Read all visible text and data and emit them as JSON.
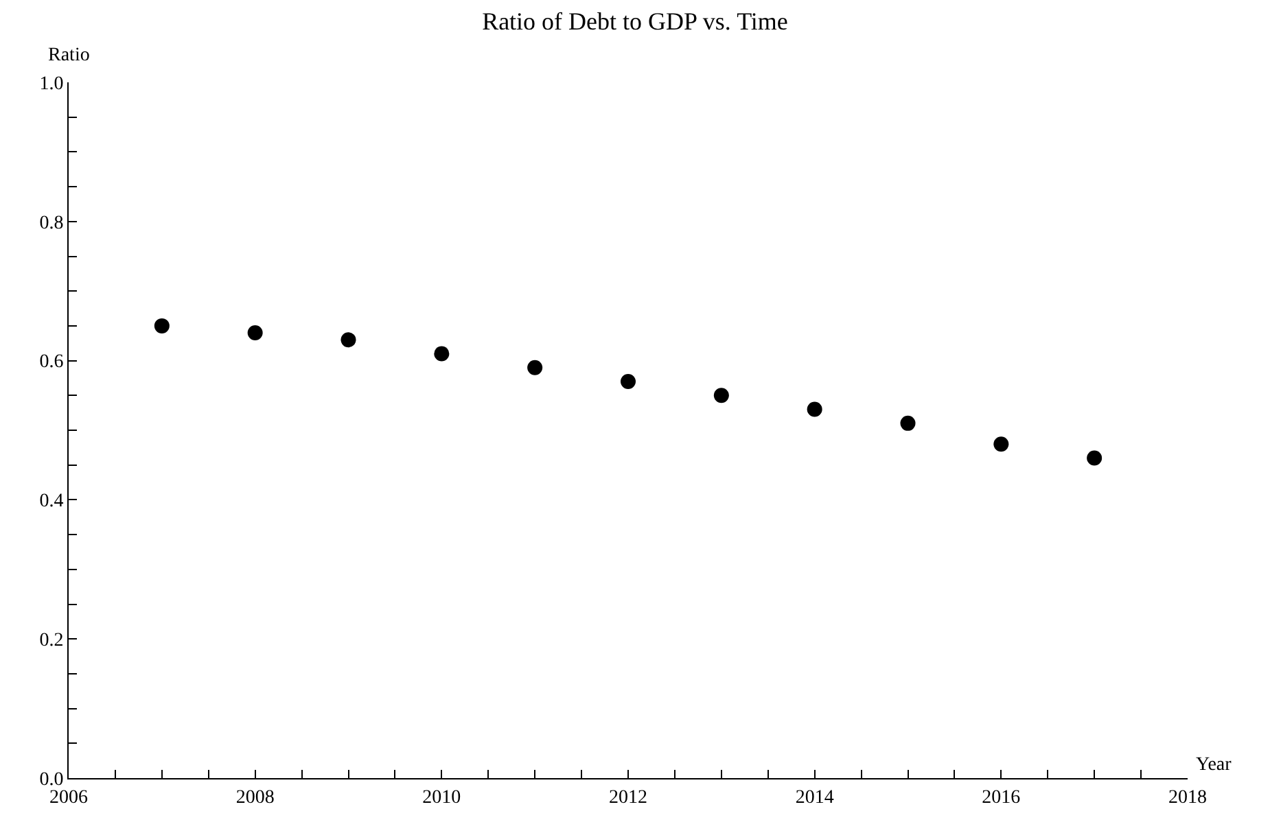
{
  "chart_data": {
    "type": "scatter",
    "title": "Ratio of Debt to GDP vs. Time",
    "xlabel": "Year",
    "ylabel": "Ratio",
    "x": [
      2007,
      2008,
      2009,
      2010,
      2011,
      2012,
      2013,
      2014,
      2015,
      2016,
      2017
    ],
    "series": [
      {
        "color": "#000000",
        "values": [
          0.65,
          0.64,
          0.63,
          0.61,
          0.59,
          0.57,
          0.55,
          0.53,
          0.51,
          0.48,
          0.46
        ]
      }
    ],
    "xlim": [
      2006,
      2018
    ],
    "xticks": [
      2006,
      {
        "value": 2006.5,
        "label": null
      },
      {
        "value": 2007,
        "label": null
      },
      {
        "value": 2007.5,
        "label": null
      },
      2008,
      {
        "value": 2008.5,
        "label": null
      },
      {
        "value": 2009,
        "label": null
      },
      {
        "value": 2009.5,
        "label": null
      },
      2010,
      {
        "value": 2010.5,
        "label": null
      },
      {
        "value": 2011,
        "label": null
      },
      {
        "value": 2011.5,
        "label": null
      },
      2012,
      {
        "value": 2012.5,
        "label": null
      },
      {
        "value": 2013,
        "label": null
      },
      {
        "value": 2013.5,
        "label": null
      },
      2014,
      {
        "value": 2014.5,
        "label": null
      },
      {
        "value": 2015,
        "label": null
      },
      {
        "value": 2015.5,
        "label": null
      },
      2016,
      {
        "value": 2016.5,
        "label": null
      },
      {
        "value": 2017,
        "label": null
      },
      {
        "value": 2017.5,
        "label": null
      },
      2018
    ],
    "ylim": [
      0,
      1
    ],
    "yticks": [
      {
        "value": 0,
        "label": "0.0"
      },
      {
        "value": 0.05,
        "label": null
      },
      {
        "value": 0.1,
        "label": null
      },
      {
        "value": 0.15,
        "label": null
      },
      0.2,
      {
        "value": 0.25,
        "label": null
      },
      {
        "value": 0.3,
        "label": null
      },
      {
        "value": 0.35,
        "label": null
      },
      0.4,
      {
        "value": 0.45,
        "label": null
      },
      {
        "value": 0.5,
        "label": null
      },
      {
        "value": 0.55,
        "label": null
      },
      0.6,
      {
        "value": 0.65,
        "label": null
      },
      {
        "value": 0.7,
        "label": null
      },
      {
        "value": 0.75,
        "label": null
      },
      0.8,
      {
        "value": 0.85,
        "label": null
      },
      {
        "value": 0.9,
        "label": null
      },
      {
        "value": 0.95,
        "label": null
      },
      {
        "value": 1,
        "label": "1.0"
      }
    ],
    "marker": "circle"
  }
}
